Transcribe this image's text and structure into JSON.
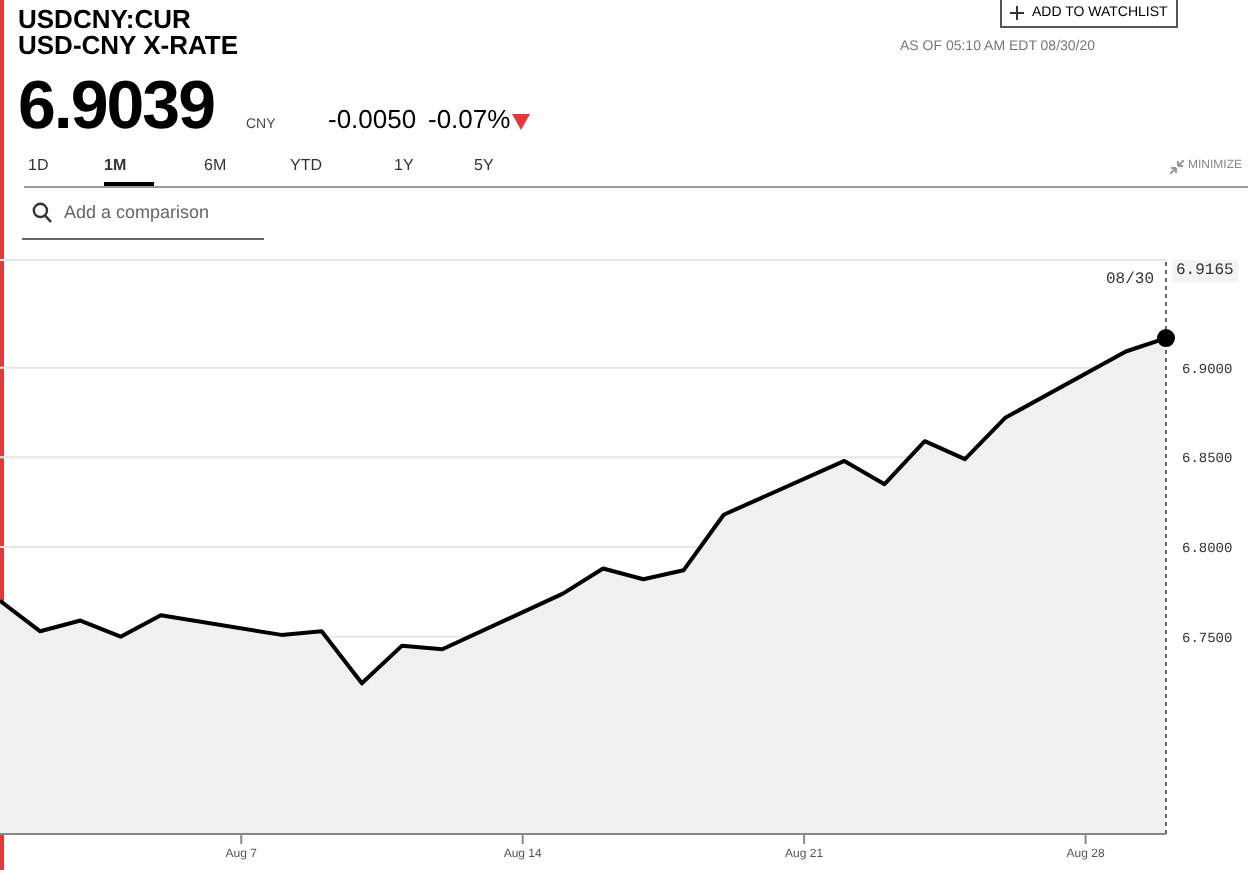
{
  "chart_data": {
    "type": "area",
    "title": "USDCNY:CUR",
    "subtitle": "USD-CNY X-RATE",
    "annotations": [
      "6.9039",
      "CNY",
      "-0.0050",
      "-0.07%",
      "AS OF 05:10 AM EDT 08/30/20",
      "ADD TO WATCHLIST",
      "1D",
      "1M",
      "6M",
      "YTD",
      "1Y",
      "5Y",
      "MINIMIZE",
      "Add a comparison",
      "6.9165"
    ],
    "x": [
      "--08-01",
      "--08-02",
      "--08-03",
      "--08-04",
      "--08-05",
      "--08-08",
      "--08-09",
      "--08-10",
      "--08-11",
      "--08-12",
      "--08-15",
      "--08-16",
      "--08-17",
      "--08-18",
      "--08-19",
      "--08-22",
      "--08-23",
      "--08-24",
      "--08-25",
      "--08-26",
      "--08-29",
      "--08-30"
    ],
    "series": [
      {
        "color": "#000000",
        "values": [
          6.77,
          6.753,
          6.759,
          6.75,
          6.762,
          6.751,
          6.753,
          6.724,
          6.745,
          6.743,
          6.774,
          6.788,
          6.782,
          6.787,
          6.818,
          6.848,
          6.835,
          6.859,
          6.849,
          6.872,
          6.909,
          6.9165
        ]
      }
    ],
    "xlim": [
      "--08-01",
      "--08-30"
    ],
    "xticks": [
      {
        "value": "--08-07",
        "label": "Aug 7"
      },
      {
        "value": "--08-14",
        "label": "Aug 14"
      },
      {
        "value": "--08-21",
        "label": "Aug 21"
      },
      {
        "value": "--08-28",
        "label": "Aug 28"
      }
    ],
    "ylim": [
      6.64,
      6.96
    ],
    "yticks": [
      {
        "value": 6.75,
        "label": "6.7500"
      },
      {
        "value": 6.8,
        "label": "6.8000"
      },
      {
        "value": 6.85,
        "label": "6.8500"
      },
      {
        "value": 6.9,
        "label": "6.9000"
      }
    ],
    "ref_lines": [
      {
        "axis": "x",
        "value": "--08-30",
        "label": "08/30",
        "line_style": "dotted"
      }
    ],
    "grid": "y",
    "legend": false,
    "marker": "none",
    "line_style": "solid"
  }
}
